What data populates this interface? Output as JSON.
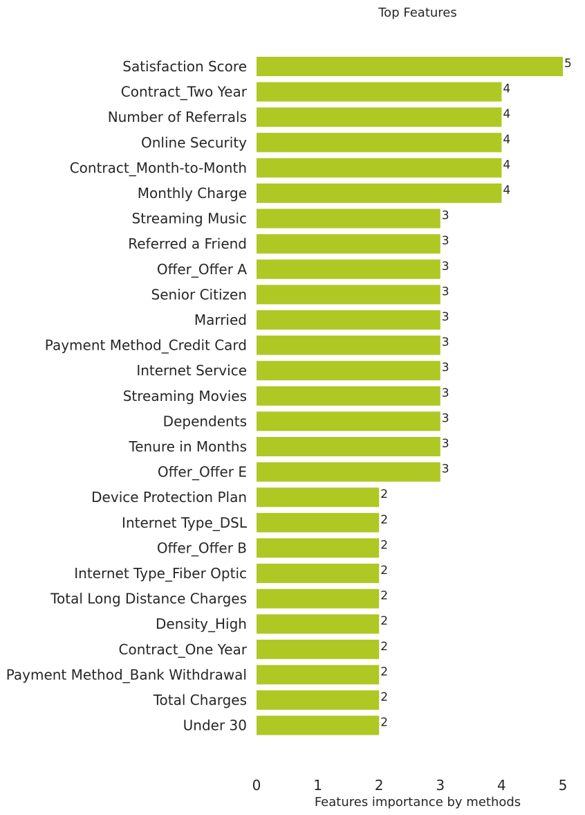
{
  "chart_data": {
    "type": "bar",
    "orientation": "horizontal",
    "title": "Top Features",
    "xlabel": "Features importance by methods",
    "ylabel": "",
    "xlim": [
      0,
      5
    ],
    "xticks": [
      "0",
      "1",
      "2",
      "3",
      "4",
      "5"
    ],
    "grid": false,
    "bar_color": "#b0c823",
    "categories": [
      "Satisfaction Score",
      "Contract_Two Year",
      "Number of Referrals",
      "Online Security",
      "Contract_Month-to-Month",
      "Monthly Charge",
      "Streaming Music",
      "Referred a Friend",
      "Offer_Offer A",
      "Senior Citizen",
      "Married",
      "Payment Method_Credit Card",
      "Internet Service",
      "Streaming Movies",
      "Dependents",
      "Tenure in Months",
      "Offer_Offer E",
      "Device Protection Plan",
      "Internet Type_DSL",
      "Offer_Offer B",
      "Internet Type_Fiber Optic",
      "Total Long Distance Charges",
      "Density_High",
      "Contract_One Year",
      "Payment Method_Bank Withdrawal",
      "Total Charges",
      "Under 30"
    ],
    "values": [
      5,
      4,
      4,
      4,
      4,
      4,
      3,
      3,
      3,
      3,
      3,
      3,
      3,
      3,
      3,
      3,
      3,
      2,
      2,
      2,
      2,
      2,
      2,
      2,
      2,
      2,
      2
    ]
  }
}
